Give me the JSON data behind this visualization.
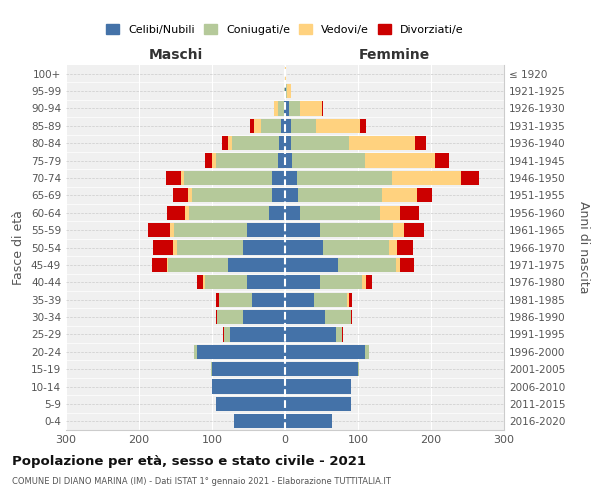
{
  "age_groups": [
    "0-4",
    "5-9",
    "10-14",
    "15-19",
    "20-24",
    "25-29",
    "30-34",
    "35-39",
    "40-44",
    "45-49",
    "50-54",
    "55-59",
    "60-64",
    "65-69",
    "70-74",
    "75-79",
    "80-84",
    "85-89",
    "90-94",
    "95-99",
    "100+"
  ],
  "birth_years": [
    "2016-2020",
    "2011-2015",
    "2006-2010",
    "2001-2005",
    "1996-2000",
    "1991-1995",
    "1986-1990",
    "1981-1985",
    "1976-1980",
    "1971-1975",
    "1966-1970",
    "1961-1965",
    "1956-1960",
    "1951-1955",
    "1946-1950",
    "1941-1945",
    "1936-1940",
    "1931-1935",
    "1926-1930",
    "1921-1925",
    "≤ 1920"
  ],
  "maschi": {
    "celibi": [
      70,
      95,
      100,
      100,
      120,
      75,
      58,
      45,
      52,
      78,
      58,
      52,
      22,
      18,
      18,
      10,
      8,
      5,
      2,
      0,
      0
    ],
    "coniugati": [
      0,
      0,
      0,
      2,
      5,
      8,
      35,
      45,
      58,
      82,
      90,
      100,
      110,
      110,
      120,
      85,
      65,
      28,
      8,
      1,
      0
    ],
    "vedovi": [
      0,
      0,
      0,
      0,
      0,
      0,
      0,
      0,
      2,
      2,
      5,
      5,
      5,
      5,
      5,
      5,
      5,
      10,
      5,
      0,
      0
    ],
    "divorziati": [
      0,
      0,
      0,
      0,
      0,
      2,
      2,
      5,
      8,
      20,
      28,
      30,
      25,
      20,
      20,
      10,
      8,
      5,
      0,
      0,
      0
    ]
  },
  "femmine": {
    "nubili": [
      65,
      90,
      90,
      100,
      110,
      70,
      55,
      40,
      48,
      72,
      52,
      48,
      20,
      18,
      16,
      10,
      8,
      8,
      5,
      1,
      0
    ],
    "coniugate": [
      0,
      0,
      0,
      2,
      5,
      8,
      35,
      45,
      58,
      80,
      90,
      100,
      110,
      115,
      130,
      100,
      80,
      35,
      15,
      2,
      0
    ],
    "vedove": [
      0,
      0,
      0,
      0,
      0,
      0,
      0,
      2,
      5,
      5,
      12,
      15,
      28,
      48,
      95,
      95,
      90,
      60,
      30,
      5,
      2
    ],
    "divorziate": [
      0,
      0,
      0,
      0,
      0,
      2,
      2,
      5,
      8,
      20,
      22,
      28,
      25,
      20,
      25,
      20,
      15,
      8,
      2,
      0,
      0
    ]
  },
  "colors": {
    "celibi": "#4472a8",
    "coniugati": "#b5c99a",
    "vedovi": "#ffd27f",
    "divorziati": "#cc0000"
  },
  "xlim": 300,
  "title": "Popolazione per età, sesso e stato civile - 2021",
  "subtitle": "COMUNE DI DIANO MARINA (IM) - Dati ISTAT 1° gennaio 2021 - Elaborazione TUTTITALIA.IT",
  "ylabel": "Fasce di età",
  "ylabel_right": "Anni di nascita",
  "xlabel_maschi": "Maschi",
  "xlabel_femmine": "Femmine",
  "bg_color": "#f0f0f0",
  "grid_color": "#cccccc"
}
